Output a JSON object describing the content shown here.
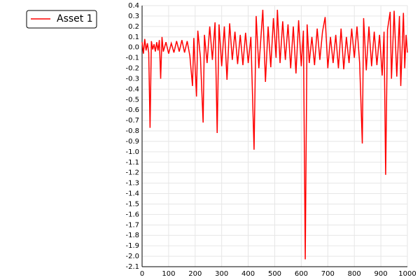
{
  "chart_data": {
    "type": "line",
    "x": [
      0,
      5,
      10,
      15,
      20,
      25,
      30,
      35,
      40,
      45,
      50,
      55,
      60,
      65,
      70,
      75,
      80,
      90,
      100,
      110,
      120,
      130,
      140,
      150,
      160,
      170,
      180,
      190,
      195,
      205,
      210,
      220,
      230,
      235,
      245,
      255,
      265,
      275,
      283,
      290,
      300,
      310,
      320,
      330,
      340,
      350,
      360,
      370,
      380,
      390,
      400,
      410,
      422,
      430,
      440,
      455,
      465,
      475,
      485,
      495,
      505,
      510,
      520,
      530,
      540,
      550,
      560,
      570,
      580,
      590,
      600,
      608,
      615,
      622,
      630,
      640,
      650,
      660,
      670,
      680,
      690,
      700,
      710,
      720,
      730,
      740,
      750,
      760,
      770,
      780,
      790,
      800,
      810,
      820,
      830,
      835,
      845,
      855,
      865,
      875,
      885,
      895,
      905,
      912,
      918,
      925,
      935,
      940,
      950,
      960,
      970,
      975,
      985,
      990,
      995,
      1000
    ],
    "series": [
      {
        "name": "Asset 1",
        "color": "#ff0000",
        "values": [
          0.05,
          -0.06,
          0.08,
          -0.03,
          0.04,
          -0.05,
          -0.77,
          0.06,
          -0.02,
          0.03,
          -0.04,
          0.05,
          -0.03,
          0.07,
          -0.3,
          0.1,
          -0.04,
          0.05,
          -0.06,
          0.04,
          -0.05,
          0.06,
          -0.04,
          0.07,
          -0.05,
          0.06,
          -0.08,
          -0.37,
          0.09,
          -0.47,
          0.16,
          -0.1,
          -0.72,
          0.12,
          -0.15,
          0.2,
          -0.12,
          0.24,
          -0.82,
          0.22,
          -0.18,
          0.2,
          -0.31,
          0.23,
          -0.12,
          0.15,
          -0.16,
          0.12,
          -0.17,
          0.14,
          -0.15,
          0.1,
          -0.98,
          0.3,
          -0.2,
          0.36,
          -0.33,
          0.2,
          -0.19,
          0.28,
          -0.1,
          0.36,
          -0.15,
          0.25,
          -0.12,
          0.22,
          -0.2,
          0.2,
          -0.25,
          0.26,
          -0.18,
          0.16,
          -2.03,
          0.22,
          -0.15,
          0.1,
          -0.17,
          0.18,
          -0.12,
          0.15,
          0.29,
          -0.2,
          0.1,
          -0.15,
          0.12,
          -0.2,
          0.18,
          -0.21,
          0.1,
          -0.15,
          0.18,
          -0.1,
          0.2,
          -0.15,
          -0.92,
          0.28,
          -0.22,
          0.2,
          -0.18,
          0.15,
          -0.17,
          0.12,
          -0.27,
          0.15,
          -1.22,
          0.17,
          0.34,
          -0.3,
          0.35,
          -0.28,
          0.3,
          -0.37,
          0.33,
          -0.2,
          0.12,
          -0.05
        ]
      }
    ],
    "xlim": [
      0,
      1000
    ],
    "xticks": [
      0,
      100,
      200,
      300,
      400,
      500,
      600,
      700,
      800,
      900,
      1000
    ],
    "ylim": [
      -2.1,
      0.4
    ],
    "yticks": [
      0.4,
      0.3,
      0.2,
      0.1,
      {
        "value": 0,
        "label": "0.0"
      },
      -0.1,
      -0.2,
      -0.3,
      -0.4,
      -0.5,
      -0.6,
      -0.7,
      -0.8,
      -0.9,
      {
        "value": -1,
        "label": "-1.0"
      },
      -1.1,
      -1.2,
      -1.3,
      -1.4,
      -1.5,
      -1.6,
      -1.7,
      -1.8,
      -1.9,
      {
        "value": -2,
        "label": "-2.0"
      },
      -2.1
    ],
    "grid": true,
    "legend": "top-left"
  }
}
